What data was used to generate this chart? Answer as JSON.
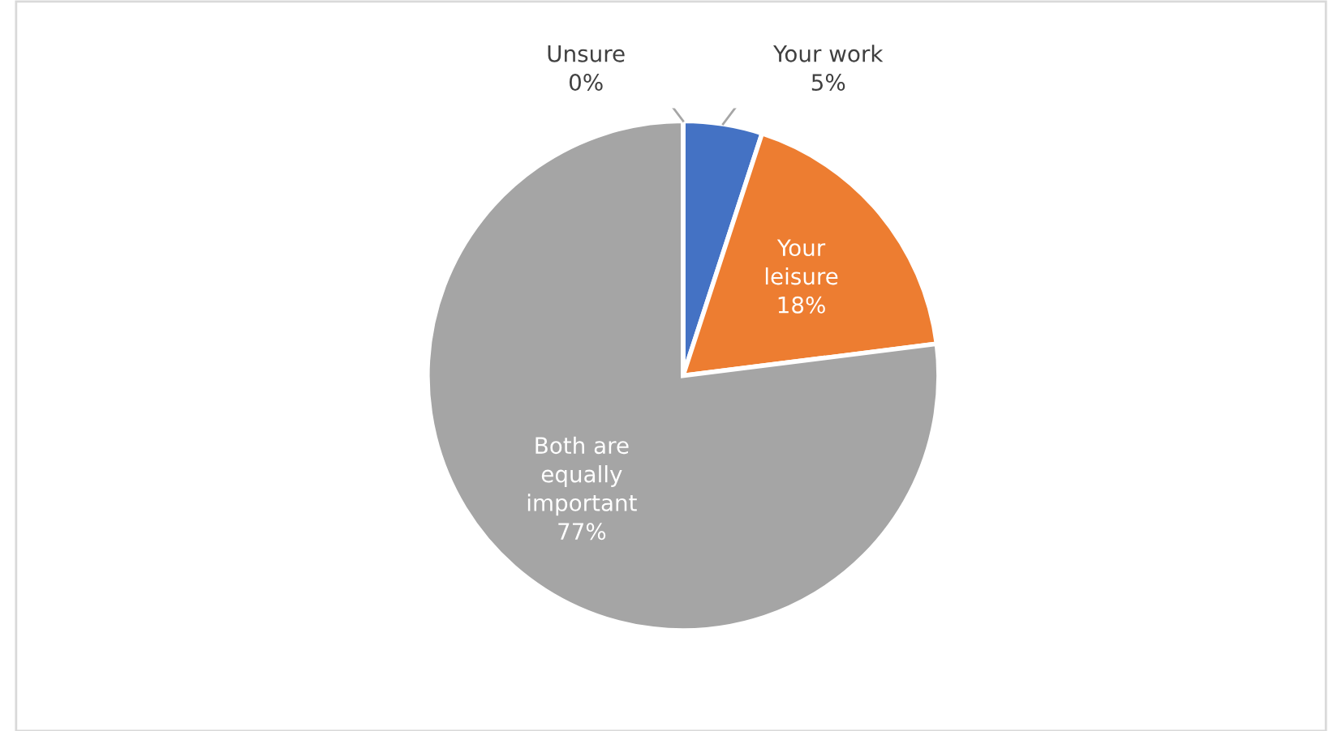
{
  "chart_data": {
    "type": "pie",
    "categories": [
      "Your work",
      "Your leisure",
      "Both are equally important",
      "Unsure"
    ],
    "values": [
      5,
      18,
      77,
      0
    ],
    "value_labels": [
      "5%",
      "18%",
      "77%",
      "0%"
    ],
    "colors": [
      "#4472c4",
      "#ed7d31",
      "#a5a5a5",
      "#ffc000"
    ],
    "legend": false
  }
}
